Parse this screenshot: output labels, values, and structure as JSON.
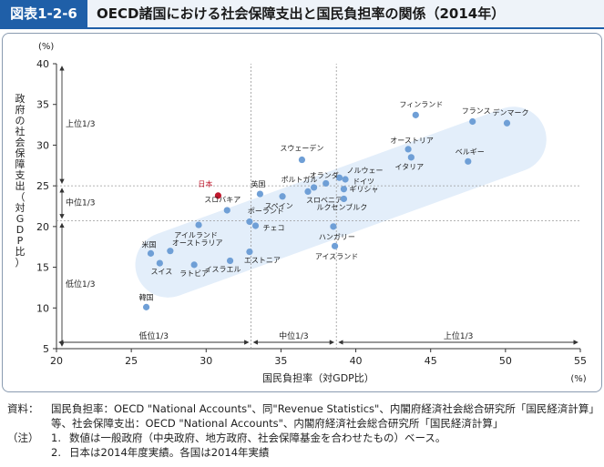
{
  "header": {
    "badge": "図表1-2-6",
    "title": "OECD諸国における社会保障支出と国民負担率の関係（2014年）"
  },
  "colors": {
    "accent": "#1f5fa8",
    "point": "#6f9fd6",
    "japan": "#c0182d",
    "band": "#e3eefa"
  },
  "chart_data": {
    "type": "scatter",
    "title": "",
    "xlabel": "国民負担率（対GDP比）",
    "xunit": "(%)",
    "ylabel": "政府の社会保障支出（対GDP比）",
    "yunit": "(%)",
    "xlim": [
      20,
      55
    ],
    "ylim": [
      5,
      40
    ],
    "xticks": [
      "20",
      "25",
      "30",
      "35",
      "40",
      "45",
      "50",
      "55"
    ],
    "yticks": [
      "5",
      "10",
      "15",
      "20",
      "25",
      "30",
      "35",
      "40"
    ],
    "grid": false,
    "thirds": {
      "x_lines": [
        33.0,
        38.7
      ],
      "y_lines": [
        20.7,
        25.0
      ],
      "x_labels": [
        "低位1/3",
        "中位1/3",
        "上位1/3"
      ],
      "y_labels": [
        "上位1/3",
        "中位1/3",
        "低位1/3"
      ]
    },
    "points": [
      {
        "name": "日本",
        "x": 30.8,
        "y": 23.8,
        "highlight": true
      },
      {
        "name": "フィンランド",
        "x": 44.0,
        "y": 33.7
      },
      {
        "name": "フランス",
        "x": 47.8,
        "y": 32.9
      },
      {
        "name": "デンマーク",
        "x": 50.1,
        "y": 32.7
      },
      {
        "name": "オーストリア",
        "x": 43.5,
        "y": 29.5
      },
      {
        "name": "イタリア",
        "x": 43.7,
        "y": 28.5
      },
      {
        "name": "ベルギー",
        "x": 47.5,
        "y": 28.0
      },
      {
        "name": "スウェーデン",
        "x": 36.4,
        "y": 28.2
      },
      {
        "name": "ノルウェー",
        "x": 38.9,
        "y": 26.0
      },
      {
        "name": "ドイツ",
        "x": 39.3,
        "y": 25.8
      },
      {
        "name": "オランダ",
        "x": 38.0,
        "y": 25.3
      },
      {
        "name": "ポルトガル",
        "x": 37.2,
        "y": 24.8
      },
      {
        "name": "ギリシャ",
        "x": 39.2,
        "y": 24.6
      },
      {
        "name": "スロベニア",
        "x": 36.8,
        "y": 24.3
      },
      {
        "name": "英国",
        "x": 33.6,
        "y": 24.0
      },
      {
        "name": "スペイン",
        "x": 35.1,
        "y": 23.7
      },
      {
        "name": "ルクセンブルク",
        "x": 39.2,
        "y": 23.4
      },
      {
        "name": "スロバキア",
        "x": 31.4,
        "y": 22.0
      },
      {
        "name": "ポーランド",
        "x": 32.9,
        "y": 20.6
      },
      {
        "name": "アイルランド",
        "x": 29.5,
        "y": 20.2
      },
      {
        "name": "チェコ",
        "x": 33.3,
        "y": 20.1
      },
      {
        "name": "ハンガリー",
        "x": 38.5,
        "y": 20.0
      },
      {
        "name": "アイスランド",
        "x": 38.6,
        "y": 17.6
      },
      {
        "name": "米国",
        "x": 26.3,
        "y": 16.7
      },
      {
        "name": "オーストラリア",
        "x": 27.6,
        "y": 17.0
      },
      {
        "name": "エストニア",
        "x": 32.9,
        "y": 16.9
      },
      {
        "name": "スイス",
        "x": 26.9,
        "y": 15.5
      },
      {
        "name": "イスラエル",
        "x": 31.6,
        "y": 15.8
      },
      {
        "name": "ラトビア",
        "x": 29.2,
        "y": 15.3
      },
      {
        "name": "韓国",
        "x": 26.0,
        "y": 10.1
      }
    ]
  },
  "notes": {
    "source_label": "資料：",
    "source_line1": "国民負担率：OECD \"National Accounts\"、同\"Revenue Statistics\"、内閣府経済社会総合研究所「国民経済計算」",
    "source_line2": "等、社会保障支出：OECD \"National Accounts\"、内閣府経済社会総合研究所「国民経済計算」",
    "note_label": "（注）",
    "note1_num": "1.",
    "note1": "数値は一般政府（中央政府、地方政府、社会保障基金を合わせたもの）ベース。",
    "note2_num": "2.",
    "note2": "日本は2014年度実績。各国は2014年実績"
  }
}
